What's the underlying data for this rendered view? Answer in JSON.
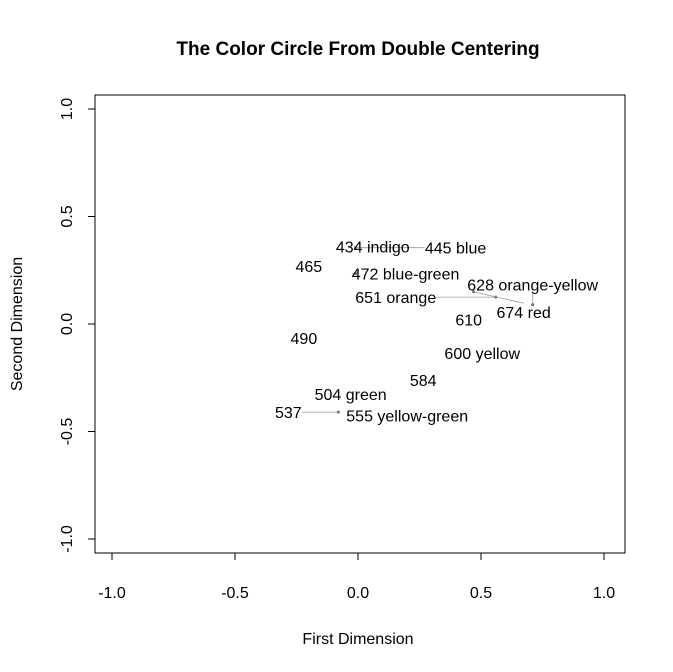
{
  "chart_data": {
    "type": "scatter",
    "title": "The Color Circle From Double Centering",
    "xlabel": "First Dimension",
    "ylabel": "Second Dimension",
    "xlim": [
      -1.1,
      1.1
    ],
    "ylim": [
      -1.1,
      1.1
    ],
    "xticks": [
      -1.0,
      -0.5,
      0.0,
      0.5,
      1.0
    ],
    "yticks": [
      -1.0,
      -0.5,
      0.0,
      0.5,
      1.0
    ],
    "xtick_labels": [
      "-1.0",
      "-0.5",
      "0.0",
      "0.5",
      "1.0"
    ],
    "ytick_labels": [
      "-1.0",
      "-0.5",
      "0.0",
      "0.5",
      "1.0"
    ],
    "grid": false,
    "points": [
      {
        "label": "434 indigo",
        "x": 0.06,
        "y": 0.36
      },
      {
        "label": "445 blue",
        "x": -0.01,
        "y": 0.355
      },
      {
        "label": "465",
        "x": -0.2,
        "y": 0.27
      },
      {
        "label": "472 blue-green",
        "x": -0.01,
        "y": 0.235
      },
      {
        "label": "490",
        "x": -0.22,
        "y": -0.065
      },
      {
        "label": "504 green",
        "x": -0.03,
        "y": -0.325
      },
      {
        "label": "537",
        "x": -0.08,
        "y": -0.41
      },
      {
        "label": "555 yellow-green",
        "x": 0.2,
        "y": -0.425
      },
      {
        "label": "584",
        "x": 0.265,
        "y": -0.26
      },
      {
        "label": "600 yellow",
        "x": 0.505,
        "y": -0.135
      },
      {
        "label": "610",
        "x": 0.45,
        "y": 0.02
      },
      {
        "label": "628 orange-yellow",
        "x": 0.71,
        "y": 0.09
      },
      {
        "label": "651 orange",
        "x": 0.56,
        "y": 0.125
      },
      {
        "label": "674 red",
        "x": 0.47,
        "y": 0.15
      }
    ]
  }
}
